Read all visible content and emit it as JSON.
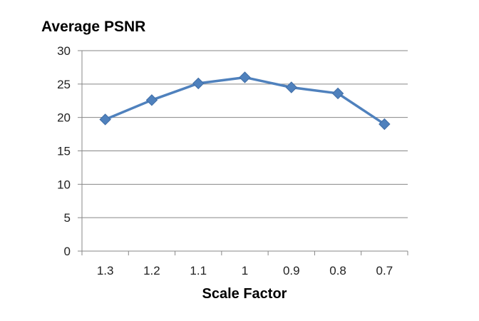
{
  "chart_data": {
    "type": "line",
    "title": "",
    "ylabel": "Average PSNR",
    "xlabel": "Scale Factor",
    "categories": [
      "1.3",
      "1.2",
      "1.1",
      "1",
      "0.9",
      "0.8",
      "0.7"
    ],
    "series": [
      {
        "values": [
          19.7,
          22.6,
          25.1,
          26.0,
          24.5,
          23.6,
          19.0
        ]
      }
    ],
    "ylim": [
      0,
      30
    ],
    "yticks": [
      "0",
      "5",
      "10",
      "15",
      "20",
      "25",
      "30"
    ],
    "grid": true,
    "legend": "none",
    "colors": {
      "series": "#4F81BD",
      "grid": "#878787",
      "axis": "#878787"
    }
  }
}
